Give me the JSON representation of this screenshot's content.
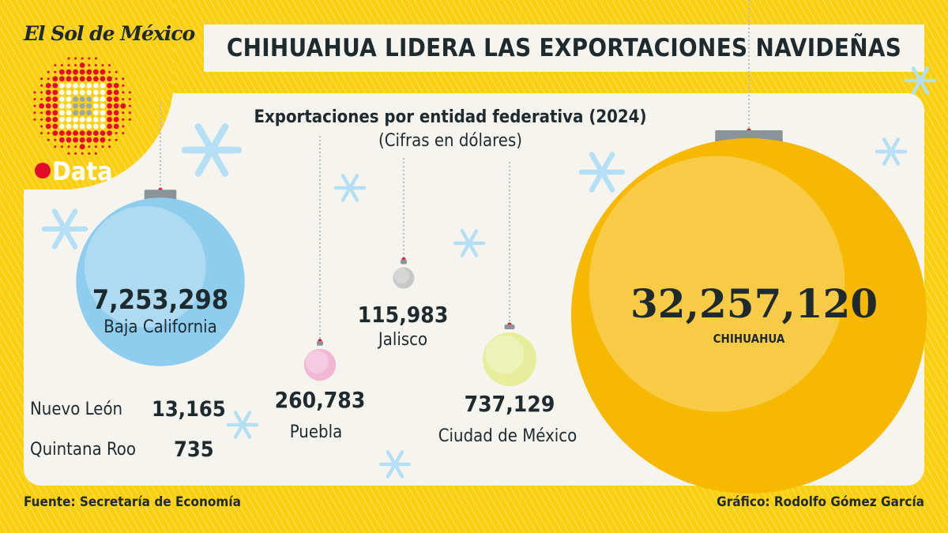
{
  "brand": "El Sol de México",
  "brand_section": "Data",
  "title": "CHIHUAHUA LIDERA LAS EXPORTACIONES NAVIDEÑAS",
  "footer": {
    "source": "Fuente: Secretaría de Economía",
    "credit": "Gráfico: Rodolfo Gómez García"
  },
  "colors": {
    "background": "#f9cf0f",
    "panel": "#f6f4ef",
    "text": "#1f2a2f",
    "accent_red": "#e30b2a"
  },
  "chart_data": {
    "type": "bubble",
    "title": "Exportaciones por entidad federativa (2024)",
    "subtitle": "(Cifras en dólares)",
    "points": [
      {
        "label": "CHIHUAHUA",
        "value": 32257120,
        "display": "32,257,120",
        "color": "#f6b800"
      },
      {
        "label": "Baja California",
        "value": 7253298,
        "display": "7,253,298",
        "color": "#8fcdee"
      },
      {
        "label": "Ciudad de México",
        "value": 737129,
        "display": "737,129",
        "color": "#e6ee9c"
      },
      {
        "label": "Puebla",
        "value": 260783,
        "display": "260,783",
        "color": "#f2b8d3"
      },
      {
        "label": "Jalisco",
        "value": 115983,
        "display": "115,983",
        "color": "#c7c7c7"
      },
      {
        "label": "Nuevo León",
        "value": 13165,
        "display": "13,165"
      },
      {
        "label": "Quintana Roo",
        "value": 735,
        "display": "735"
      }
    ]
  }
}
